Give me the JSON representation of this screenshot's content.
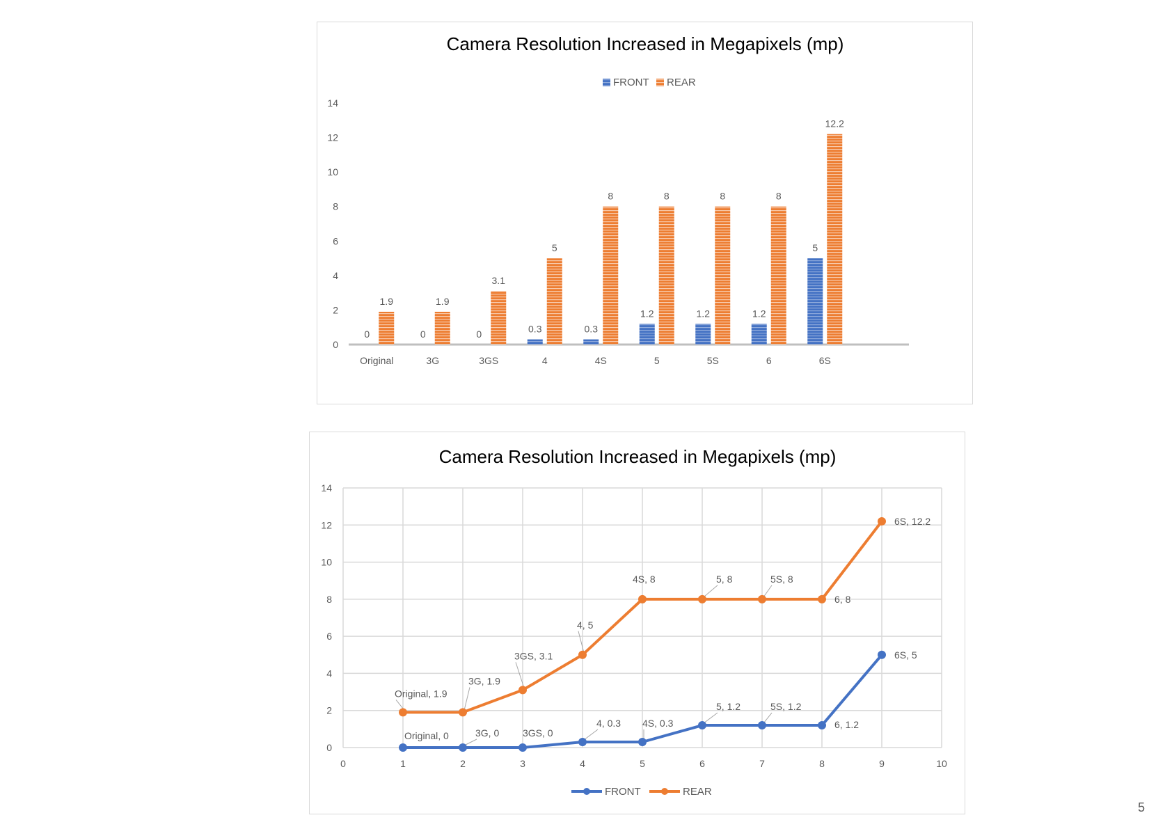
{
  "page": {
    "page_number": "5"
  },
  "chart_data": [
    {
      "type": "bar",
      "title": "Camera Resolution Increased in Megapixels (mp)",
      "legend_position": "top",
      "categories": [
        "Original",
        "3G",
        "3GS",
        "4",
        "4S",
        "5",
        "5S",
        "6",
        "6S"
      ],
      "series": [
        {
          "name": "FRONT",
          "color": "#4472c4",
          "values": [
            0,
            0,
            0,
            0.3,
            0.3,
            1.2,
            1.2,
            1.2,
            5
          ],
          "labels": [
            "0",
            "0",
            "0",
            "0.3",
            "0.3",
            "1.2",
            "1.2",
            "1.2",
            "5"
          ]
        },
        {
          "name": "REAR",
          "color": "#ed7d31",
          "values": [
            1.9,
            1.9,
            3.1,
            5,
            8,
            8,
            8,
            8,
            12.2
          ],
          "labels": [
            "1.9",
            "1.9",
            "3.1",
            "5",
            "8",
            "8",
            "8",
            "8",
            "12.2"
          ]
        }
      ],
      "ylim": [
        0,
        14
      ],
      "yticks": [
        "0",
        "2",
        "4",
        "6",
        "8",
        "10",
        "12",
        "14"
      ],
      "grid": false
    },
    {
      "type": "line",
      "title": "Camera Resolution Increased in Megapixels (mp)",
      "legend_position": "bottom",
      "x": [
        1,
        2,
        3,
        4,
        5,
        6,
        7,
        8,
        9
      ],
      "xlim": [
        0,
        10
      ],
      "ylim": [
        0,
        14
      ],
      "xticks": [
        "0",
        "1",
        "2",
        "3",
        "4",
        "5",
        "6",
        "7",
        "8",
        "9",
        "10"
      ],
      "yticks": [
        "0",
        "2",
        "4",
        "6",
        "8",
        "10",
        "12",
        "14"
      ],
      "grid": true,
      "series": [
        {
          "name": "FRONT",
          "color": "#4472c4",
          "values": [
            0,
            0,
            0,
            0.3,
            0.3,
            1.2,
            1.2,
            1.2,
            5
          ],
          "labels": [
            "Original, 0",
            "3G, 0",
            "3GS, 0",
            "4, 0.3",
            "4S, 0.3",
            "5, 1.2",
            "5S, 1.2",
            "6, 1.2",
            "6S, 5"
          ]
        },
        {
          "name": "REAR",
          "color": "#ed7d31",
          "values": [
            1.9,
            1.9,
            3.1,
            5,
            8,
            8,
            8,
            8,
            12.2
          ],
          "labels": [
            "Original, 1.9",
            "3G, 1.9",
            "3GS, 3.1",
            "4, 5",
            "4S, 8",
            "5, 8",
            "5S, 8",
            "6, 8",
            "6S, 12.2"
          ]
        }
      ]
    }
  ]
}
